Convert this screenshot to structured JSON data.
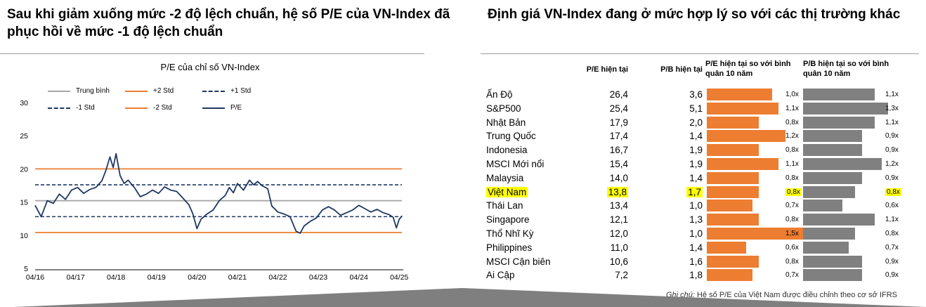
{
  "left_panel": {
    "headline": "Sau khi giảm xuống mức -2 độ lệch chuẩn, hệ số P/E của VN-Index đã phục hồi về mức -1 độ lệch chuẩn"
  },
  "right_panel": {
    "headline": "Định giá VN-Index đang ở mức hợp lý so với các thị trường khác",
    "footnote_label": "Ghi chú:",
    "footnote_text": " Hệ số P/E của Việt Nam được điều chỉnh theo cơ sở IFRS"
  },
  "colors": {
    "orange": "#ed7d31",
    "navy": "#1f3864",
    "gray": "#a6a6a6",
    "bar_gray": "#808080",
    "highlight": "#ffff00"
  },
  "chart_data": [
    {
      "type": "line",
      "title": "P/E của chỉ số VN-Index",
      "ylim": [
        5,
        30
      ],
      "yticks": [
        "5",
        "10",
        "15",
        "20",
        "25",
        "30"
      ],
      "xticks": [
        "04/16",
        "04/17",
        "04/18",
        "04/19",
        "04/20",
        "04/21",
        "04/22",
        "04/23",
        "04/24",
        "04/25"
      ],
      "reference_lines": [
        {
          "name": "Trung bình",
          "value": 15.2,
          "style": "solid",
          "color": "#a6a6a6"
        },
        {
          "name": "+2 Std",
          "value": 20.0,
          "style": "solid",
          "color": "#ed7d31"
        },
        {
          "name": "+1 Std",
          "value": 17.6,
          "style": "dashed",
          "color": "#1f3864"
        },
        {
          "name": "-1 Std",
          "value": 12.8,
          "style": "dashed",
          "color": "#1f3864"
        },
        {
          "name": "-2 Std",
          "value": 10.4,
          "style": "solid",
          "color": "#ed7d31"
        }
      ],
      "series": [
        {
          "name": "P/E",
          "color": "#1f3864",
          "x": [
            2016.25,
            2016.4,
            2016.55,
            2016.7,
            2016.85,
            2017.0,
            2017.15,
            2017.3,
            2017.45,
            2017.6,
            2017.75,
            2017.9,
            2018.0,
            2018.1,
            2018.18,
            2018.25,
            2018.35,
            2018.45,
            2018.55,
            2018.7,
            2018.85,
            2019.0,
            2019.15,
            2019.3,
            2019.45,
            2019.6,
            2019.75,
            2019.9,
            2020.05,
            2020.15,
            2020.25,
            2020.35,
            2020.5,
            2020.65,
            2020.8,
            2020.95,
            2021.05,
            2021.15,
            2021.25,
            2021.4,
            2021.55,
            2021.65,
            2021.75,
            2021.85,
            2022.0,
            2022.1,
            2022.25,
            2022.4,
            2022.55,
            2022.7,
            2022.8,
            2022.9,
            2023.05,
            2023.2,
            2023.35,
            2023.5,
            2023.65,
            2023.8,
            2023.95,
            2024.1,
            2024.25,
            2024.4,
            2024.55,
            2024.7,
            2024.85,
            2025.0,
            2025.1,
            2025.18,
            2025.25,
            2025.32
          ],
          "y": [
            14.5,
            12.8,
            15.2,
            14.8,
            16.2,
            15.4,
            16.8,
            17.2,
            16.3,
            16.9,
            17.2,
            18.2,
            19.8,
            21.8,
            20.2,
            22.3,
            19.0,
            17.8,
            18.3,
            17.2,
            15.8,
            16.2,
            16.8,
            16.3,
            17.3,
            16.8,
            16.6,
            15.6,
            14.6,
            13.2,
            11.0,
            12.4,
            13.2,
            13.8,
            15.2,
            16.0,
            17.2,
            16.4,
            17.8,
            16.8,
            18.3,
            17.6,
            18.1,
            17.5,
            17.0,
            14.4,
            13.5,
            13.2,
            12.8,
            10.6,
            10.3,
            11.4,
            12.1,
            12.6,
            13.8,
            14.3,
            13.8,
            13.0,
            13.4,
            13.8,
            14.5,
            14.0,
            13.5,
            13.9,
            13.4,
            13.1,
            12.7,
            11.1,
            12.4,
            12.9
          ]
        }
      ]
    },
    {
      "type": "table",
      "columns": [
        "P/E hiện tại",
        "P/B hiện tại",
        "P/E hiện tại so với bình quân 10 năm",
        "P/B hiện tại so với bình quân 10 năm"
      ],
      "rows": [
        {
          "country": "Ấn Độ",
          "pe": "26,4",
          "pb": "3,6",
          "pe_ratio": 1.0,
          "pe_ratio_label": "1,0x",
          "pb_ratio": 1.1,
          "pb_ratio_label": "1,1x"
        },
        {
          "country": "S&P500",
          "pe": "25,4",
          "pb": "5,1",
          "pe_ratio": 1.1,
          "pe_ratio_label": "1,1x",
          "pb_ratio": 1.3,
          "pb_ratio_label": "1,3x"
        },
        {
          "country": "Nhật Bản",
          "pe": "17,9",
          "pb": "2,0",
          "pe_ratio": 0.8,
          "pe_ratio_label": "0,8x",
          "pb_ratio": 1.1,
          "pb_ratio_label": "1,1x"
        },
        {
          "country": "Trung Quốc",
          "pe": "17,4",
          "pb": "1,4",
          "pe_ratio": 1.2,
          "pe_ratio_label": "1,2x",
          "pb_ratio": 0.9,
          "pb_ratio_label": "0,9x"
        },
        {
          "country": "Indonesia",
          "pe": "16,7",
          "pb": "1,9",
          "pe_ratio": 0.8,
          "pe_ratio_label": "0,8x",
          "pb_ratio": 0.9,
          "pb_ratio_label": "0,9x"
        },
        {
          "country": "MSCI Mới nổi",
          "pe": "15,4",
          "pb": "1,9",
          "pe_ratio": 1.1,
          "pe_ratio_label": "1,1x",
          "pb_ratio": 1.2,
          "pb_ratio_label": "1,2x"
        },
        {
          "country": "Malaysia",
          "pe": "14,0",
          "pb": "1,4",
          "pe_ratio": 0.8,
          "pe_ratio_label": "0,8x",
          "pb_ratio": 0.9,
          "pb_ratio_label": "0,9x"
        },
        {
          "country": "Việt Nam",
          "pe": "13,8",
          "pb": "1,7",
          "pe_ratio": 0.8,
          "pe_ratio_label": "0,8x",
          "pb_ratio": 0.8,
          "pb_ratio_label": "0,8x",
          "highlight": true
        },
        {
          "country": "Thái Lan",
          "pe": "13,4",
          "pb": "1,0",
          "pe_ratio": 0.7,
          "pe_ratio_label": "0,7x",
          "pb_ratio": 0.6,
          "pb_ratio_label": "0,6x"
        },
        {
          "country": "Singapore",
          "pe": "12,1",
          "pb": "1,3",
          "pe_ratio": 0.8,
          "pe_ratio_label": "0,8x",
          "pb_ratio": 1.1,
          "pb_ratio_label": "1,1x"
        },
        {
          "country": "Thổ Nhĩ Kỳ",
          "pe": "12,0",
          "pb": "1,0",
          "pe_ratio": 1.5,
          "pe_ratio_label": "1,5x",
          "pb_ratio": 0.8,
          "pb_ratio_label": "0,8x"
        },
        {
          "country": "Philippines",
          "pe": "11,0",
          "pb": "1,4",
          "pe_ratio": 0.6,
          "pe_ratio_label": "0,6x",
          "pb_ratio": 0.7,
          "pb_ratio_label": "0,7x"
        },
        {
          "country": "MSCI Cận biên",
          "pe": "10,6",
          "pb": "1,6",
          "pe_ratio": 0.8,
          "pe_ratio_label": "0,8x",
          "pb_ratio": 0.9,
          "pb_ratio_label": "0,9x"
        },
        {
          "country": "Ai Cập",
          "pe": "7,2",
          "pb": "1,8",
          "pe_ratio": 0.7,
          "pe_ratio_label": "0,7x",
          "pb_ratio": 0.9,
          "pb_ratio_label": "0,9x"
        }
      ]
    }
  ]
}
